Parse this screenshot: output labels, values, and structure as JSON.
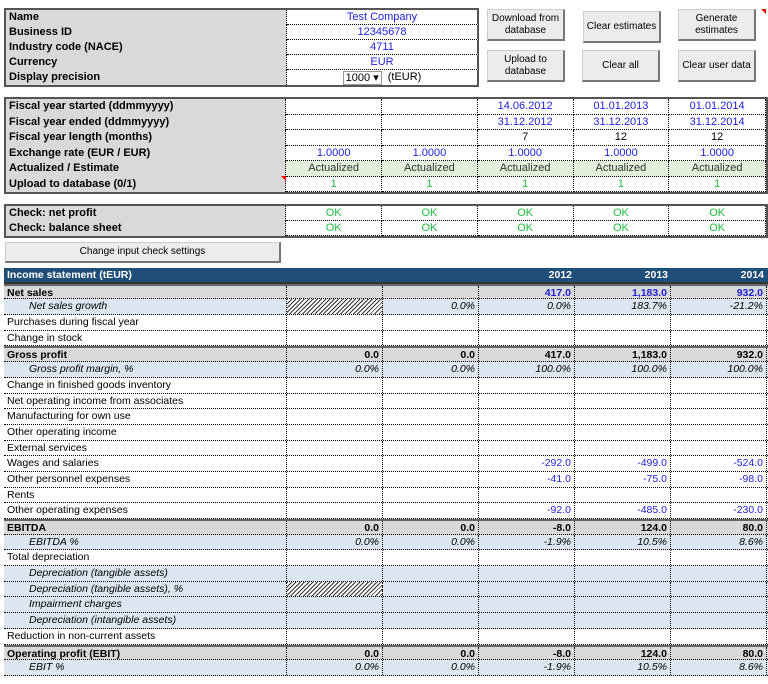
{
  "company": {
    "rows": [
      {
        "label": "Name",
        "value": "Test Company"
      },
      {
        "label": "Business ID",
        "value": "12345678"
      },
      {
        "label": "Industry code (NACE)",
        "value": "4711"
      },
      {
        "label": "Currency",
        "value": "EUR"
      },
      {
        "label": "Display precision",
        "value": "1000",
        "unit": "(tEUR)"
      }
    ]
  },
  "buttons": {
    "download": "Download from database",
    "clear_estimates": "Clear estimates",
    "generate": "Generate estimates",
    "upload": "Upload to database",
    "clear_all": "Clear all",
    "clear_user": "Clear user data",
    "check_settings": "Change input check settings"
  },
  "fiscal": {
    "rows": [
      {
        "label": "Fiscal year started (ddmmyyyy)",
        "values": [
          "",
          "",
          "14.06.2012",
          "01.01.2013",
          "01.01.2014"
        ],
        "cls": "blue"
      },
      {
        "label": "Fiscal year ended (ddmmyyyy)",
        "values": [
          "",
          "",
          "31.12.2012",
          "31.12.2013",
          "31.12.2014"
        ],
        "cls": "blue"
      },
      {
        "label": "Fiscal year length (months)",
        "values": [
          "",
          "",
          "7",
          "12",
          "12"
        ],
        "cls": ""
      },
      {
        "label": "Exchange rate (EUR / EUR)",
        "values": [
          "1.0000",
          "1.0000",
          "1.0000",
          "1.0000",
          "1.0000"
        ],
        "cls": "blue"
      },
      {
        "label": "Actualized / Estimate",
        "values": [
          "Actualized",
          "Actualized",
          "Actualized",
          "Actualized",
          "Actualized"
        ],
        "cls": "act"
      },
      {
        "label": "Upload to database (0/1)",
        "values": [
          "1",
          "1",
          "1",
          "1",
          "1"
        ],
        "cls": "green"
      }
    ]
  },
  "checks": {
    "rows": [
      {
        "label": "Check: net profit",
        "values": [
          "OK",
          "OK",
          "OK",
          "OK",
          "OK"
        ]
      },
      {
        "label": "Check: balance sheet",
        "values": [
          "OK",
          "OK",
          "OK",
          "OK",
          "OK"
        ]
      }
    ]
  },
  "income": {
    "title": "Income statement (tEUR)",
    "years": [
      "",
      "",
      "2012",
      "2013",
      "2014"
    ],
    "rows": [
      {
        "label": "Net sales",
        "style": "bold",
        "values": [
          "",
          "",
          "417.0",
          "1,183.0",
          "932.0"
        ],
        "input": true
      },
      {
        "label": "Net sales growth",
        "style": "ital",
        "values": [
          "",
          "0.0%",
          "0.0%",
          "183.7%",
          "-21.2%"
        ],
        "hatch": 0
      },
      {
        "label": "Purchases during fiscal year",
        "style": "norm",
        "values": [
          "",
          "",
          "",
          "",
          ""
        ]
      },
      {
        "label": "Change in stock",
        "style": "norm",
        "values": [
          "",
          "",
          "",
          "",
          ""
        ]
      },
      {
        "label": "Gross profit",
        "style": "bold",
        "values": [
          "0.0",
          "0.0",
          "417.0",
          "1,183.0",
          "932.0"
        ]
      },
      {
        "label": "Gross profit margin, %",
        "style": "ital",
        "values": [
          "0.0%",
          "0.0%",
          "100.0%",
          "100.0%",
          "100.0%"
        ]
      },
      {
        "label": "Change in finished goods inventory",
        "style": "norm",
        "values": [
          "",
          "",
          "",
          "",
          ""
        ]
      },
      {
        "label": "Net operating income from associates",
        "style": "norm",
        "values": [
          "",
          "",
          "",
          "",
          ""
        ]
      },
      {
        "label": "Manufacturing for own use",
        "style": "norm",
        "values": [
          "",
          "",
          "",
          "",
          ""
        ]
      },
      {
        "label": "Other operating income",
        "style": "norm",
        "values": [
          "",
          "",
          "",
          "",
          ""
        ]
      },
      {
        "label": "External services",
        "style": "norm",
        "values": [
          "",
          "",
          "",
          "",
          ""
        ]
      },
      {
        "label": "Wages and salaries",
        "style": "norm",
        "values": [
          "",
          "",
          "-292.0",
          "-499.0",
          "-524.0"
        ],
        "input": true
      },
      {
        "label": "Other personnel expenses",
        "style": "norm",
        "values": [
          "",
          "",
          "-41.0",
          "-75.0",
          "-98.0"
        ],
        "input": true
      },
      {
        "label": "Rents",
        "style": "norm",
        "values": [
          "",
          "",
          "",
          "",
          ""
        ]
      },
      {
        "label": "Other operating expenses",
        "style": "norm",
        "values": [
          "",
          "",
          "-92.0",
          "-485.0",
          "-230.0"
        ],
        "input": true
      },
      {
        "label": "EBITDA",
        "style": "bold",
        "values": [
          "0.0",
          "0.0",
          "-8.0",
          "124.0",
          "80.0"
        ]
      },
      {
        "label": "EBITDA %",
        "style": "ital",
        "values": [
          "0.0%",
          "0.0%",
          "-1.9%",
          "10.5%",
          "8.6%"
        ]
      },
      {
        "label": "Total depreciation",
        "style": "norm",
        "values": [
          "",
          "",
          "",
          "",
          ""
        ]
      },
      {
        "label": "Depreciation (tangible assets)",
        "style": "ital",
        "values": [
          "",
          "",
          "",
          "",
          ""
        ]
      },
      {
        "label": "Depreciation (tangible assets), %",
        "style": "ital",
        "values": [
          "",
          "",
          "",
          "",
          ""
        ],
        "hatch": 0
      },
      {
        "label": "Impairment charges",
        "style": "ital",
        "values": [
          "",
          "",
          "",
          "",
          ""
        ]
      },
      {
        "label": "Depreciation (intangible assets)",
        "style": "ital",
        "values": [
          "",
          "",
          "",
          "",
          ""
        ]
      },
      {
        "label": "Reduction in non-current assets",
        "style": "norm",
        "values": [
          "",
          "",
          "",
          "",
          ""
        ]
      },
      {
        "label": "Operating profit (EBIT)",
        "style": "bold",
        "values": [
          "0.0",
          "0.0",
          "-8.0",
          "124.0",
          "80.0"
        ]
      },
      {
        "label": "EBIT %",
        "style": "ital",
        "values": [
          "0.0%",
          "0.0%",
          "-1.9%",
          "10.5%",
          "8.6%"
        ]
      }
    ]
  },
  "colors": {
    "input": "#2222dd",
    "ok": "#22bb44",
    "header": "#1f4e79"
  }
}
